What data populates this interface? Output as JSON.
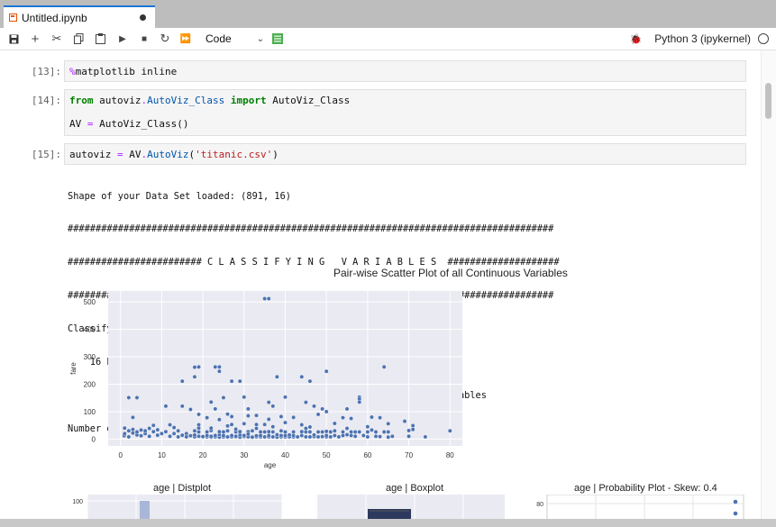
{
  "tab": {
    "title": "Untitled.ipynb"
  },
  "toolbar": {
    "cell_type": "Code",
    "kernel_name": "Python 3 (ipykernel)"
  },
  "cells": [
    {
      "prompt": "[13]:"
    },
    {
      "prompt": "[14]:"
    },
    {
      "prompt": "[15]:"
    }
  ],
  "output": {
    "lines": [
      "Shape of your Data Set loaded: (891, 16)",
      "#######################################################################################",
      "######################## C L A S S I F Y I N G   V A R I A B L E S  ####################",
      "#######################################################################################",
      "Classifying variables in data set...",
      "    16 Predictors classified...",
      "        1 variables removed since they were ID or low-information variables",
      "Number of All Scatter Plots = 3"
    ],
    "pair_title": "Pair-wise Scatter Plot of all Continuous Variables"
  },
  "chart_data": [
    {
      "type": "scatter",
      "xlabel": "age",
      "ylabel": "fare",
      "xlim": [
        -3,
        83
      ],
      "ylim": [
        -25,
        540
      ],
      "xticks": [
        0,
        10,
        20,
        30,
        40,
        50,
        60,
        70,
        80
      ],
      "yticks": [
        0,
        100,
        200,
        300,
        400,
        500
      ],
      "grid": true,
      "points": [
        [
          35,
          512
        ],
        [
          36,
          512
        ],
        [
          2,
          151
        ],
        [
          4,
          151
        ],
        [
          18,
          262
        ],
        [
          19,
          263
        ],
        [
          23,
          263
        ],
        [
          24,
          263
        ],
        [
          24,
          247
        ],
        [
          27,
          211
        ],
        [
          29,
          211
        ],
        [
          38,
          227
        ],
        [
          44,
          227
        ],
        [
          46,
          211
        ],
        [
          50,
          247
        ],
        [
          64,
          263
        ],
        [
          58,
          153
        ],
        [
          58,
          146
        ],
        [
          18,
          227
        ],
        [
          15,
          211
        ],
        [
          11,
          120
        ],
        [
          15,
          120
        ],
        [
          22,
          135
        ],
        [
          25,
          151
        ],
        [
          30,
          153
        ],
        [
          31,
          110
        ],
        [
          36,
          134
        ],
        [
          37,
          120
        ],
        [
          40,
          153
        ],
        [
          49,
          110
        ],
        [
          55,
          110
        ],
        [
          58,
          135
        ],
        [
          23,
          110
        ],
        [
          21,
          78
        ],
        [
          42,
          79
        ],
        [
          45,
          134
        ],
        [
          47,
          120
        ],
        [
          54,
          78
        ],
        [
          61,
          80
        ],
        [
          69,
          65
        ],
        [
          71,
          49
        ],
        [
          3,
          79
        ],
        [
          8,
          50
        ],
        [
          17,
          108
        ],
        [
          19,
          90
        ],
        [
          26,
          91
        ],
        [
          39,
          82
        ],
        [
          48,
          90
        ],
        [
          50,
          100
        ],
        [
          52,
          57
        ],
        [
          56,
          75
        ],
        [
          63,
          78
        ],
        [
          65,
          56
        ],
        [
          33,
          86
        ],
        [
          44,
          52
        ],
        [
          0.9,
          12
        ],
        [
          1,
          20
        ],
        [
          1,
          40
        ],
        [
          2,
          30
        ],
        [
          2,
          8
        ],
        [
          3,
          22
        ],
        [
          3,
          35
        ],
        [
          4,
          15
        ],
        [
          4,
          26
        ],
        [
          5,
          12
        ],
        [
          5,
          33
        ],
        [
          6,
          20
        ],
        [
          6,
          30
        ],
        [
          7,
          10
        ],
        [
          8,
          27
        ],
        [
          9,
          34
        ],
        [
          9,
          14
        ],
        [
          10,
          20
        ],
        [
          11,
          27
        ],
        [
          12,
          10
        ],
        [
          13,
          20
        ],
        [
          14,
          30
        ],
        [
          14,
          8
        ],
        [
          15,
          14
        ],
        [
          16,
          20
        ],
        [
          16,
          8
        ],
        [
          17,
          12
        ],
        [
          18,
          8
        ],
        [
          18,
          15
        ],
        [
          18,
          30
        ],
        [
          19,
          10
        ],
        [
          19,
          26
        ],
        [
          19,
          52
        ],
        [
          20,
          8
        ],
        [
          20,
          9
        ],
        [
          21,
          8
        ],
        [
          21,
          13
        ],
        [
          21,
          26
        ],
        [
          22,
          7
        ],
        [
          22,
          10
        ],
        [
          22,
          31
        ],
        [
          23,
          8
        ],
        [
          23,
          13
        ],
        [
          24,
          7
        ],
        [
          24,
          16
        ],
        [
          24,
          27
        ],
        [
          24,
          71
        ],
        [
          25,
          8
        ],
        [
          25,
          13
        ],
        [
          25,
          26
        ],
        [
          26,
          7
        ],
        [
          26,
          8
        ],
        [
          26,
          30
        ],
        [
          27,
          8
        ],
        [
          27,
          13
        ],
        [
          27,
          53
        ],
        [
          28,
          8
        ],
        [
          28,
          10
        ],
        [
          28,
          26
        ],
        [
          29,
          7
        ],
        [
          29,
          15
        ],
        [
          29,
          27
        ],
        [
          30,
          8
        ],
        [
          30,
          10
        ],
        [
          30,
          13
        ],
        [
          30,
          56
        ],
        [
          31,
          8
        ],
        [
          31,
          27
        ],
        [
          31,
          18
        ],
        [
          32,
          8
        ],
        [
          32,
          7
        ],
        [
          32,
          30
        ],
        [
          33,
          8
        ],
        [
          33,
          12
        ],
        [
          33,
          53
        ],
        [
          34,
          8
        ],
        [
          34,
          13
        ],
        [
          34,
          26
        ],
        [
          35,
          8
        ],
        [
          35,
          26
        ],
        [
          35,
          53
        ],
        [
          36,
          8
        ],
        [
          36,
          13
        ],
        [
          36,
          27
        ],
        [
          37,
          8
        ],
        [
          37,
          26
        ],
        [
          38,
          7
        ],
        [
          38,
          16
        ],
        [
          39,
          8
        ],
        [
          39,
          13
        ],
        [
          39,
          30
        ],
        [
          40,
          8
        ],
        [
          40,
          13
        ],
        [
          40,
          26
        ],
        [
          41,
          8
        ],
        [
          41,
          15
        ],
        [
          42,
          8
        ],
        [
          42,
          13
        ],
        [
          42,
          26
        ],
        [
          43,
          8
        ],
        [
          44,
          13
        ],
        [
          44,
          27
        ],
        [
          45,
          8
        ],
        [
          45,
          26
        ],
        [
          46,
          8
        ],
        [
          46,
          26
        ],
        [
          47,
          9
        ],
        [
          47,
          15
        ],
        [
          48,
          8
        ],
        [
          48,
          26
        ],
        [
          49,
          26
        ],
        [
          49,
          9
        ],
        [
          50,
          8
        ],
        [
          50,
          13
        ],
        [
          50,
          28
        ],
        [
          51,
          8
        ],
        [
          51,
          26
        ],
        [
          52,
          13
        ],
        [
          52,
          30
        ],
        [
          53,
          8
        ],
        [
          54,
          26
        ],
        [
          54,
          13
        ],
        [
          55,
          16
        ],
        [
          56,
          26
        ],
        [
          56,
          13
        ],
        [
          57,
          10
        ],
        [
          57,
          26
        ],
        [
          58,
          26
        ],
        [
          59,
          13
        ],
        [
          60,
          26
        ],
        [
          60,
          8
        ],
        [
          61,
          33
        ],
        [
          62,
          10
        ],
        [
          62,
          26
        ],
        [
          63,
          9
        ],
        [
          64,
          26
        ],
        [
          65,
          7
        ],
        [
          65,
          26
        ],
        [
          66,
          10
        ],
        [
          70,
          10
        ],
        [
          70,
          31
        ],
        [
          71,
          35
        ],
        [
          74,
          8
        ],
        [
          80,
          30
        ],
        [
          45,
          39
        ],
        [
          28,
          36
        ],
        [
          22,
          40
        ],
        [
          13,
          42
        ],
        [
          7,
          39
        ],
        [
          33,
          39
        ],
        [
          37,
          45
        ],
        [
          26,
          48
        ],
        [
          19,
          40
        ],
        [
          12,
          52
        ],
        [
          55,
          39
        ],
        [
          60,
          45
        ],
        [
          46,
          44
        ],
        [
          27,
          82
        ],
        [
          31,
          85
        ],
        [
          36,
          72
        ],
        [
          40,
          60
        ]
      ]
    },
    {
      "type": "bar",
      "title": "age | Distplot",
      "ylim": [
        0,
        100
      ],
      "yticks": [
        100
      ]
    },
    {
      "type": "box",
      "title": "age | Boxplot"
    },
    {
      "type": "scatter",
      "title": "age | Probability Plot - Skew: 0.4",
      "yticks": [
        80
      ]
    }
  ]
}
